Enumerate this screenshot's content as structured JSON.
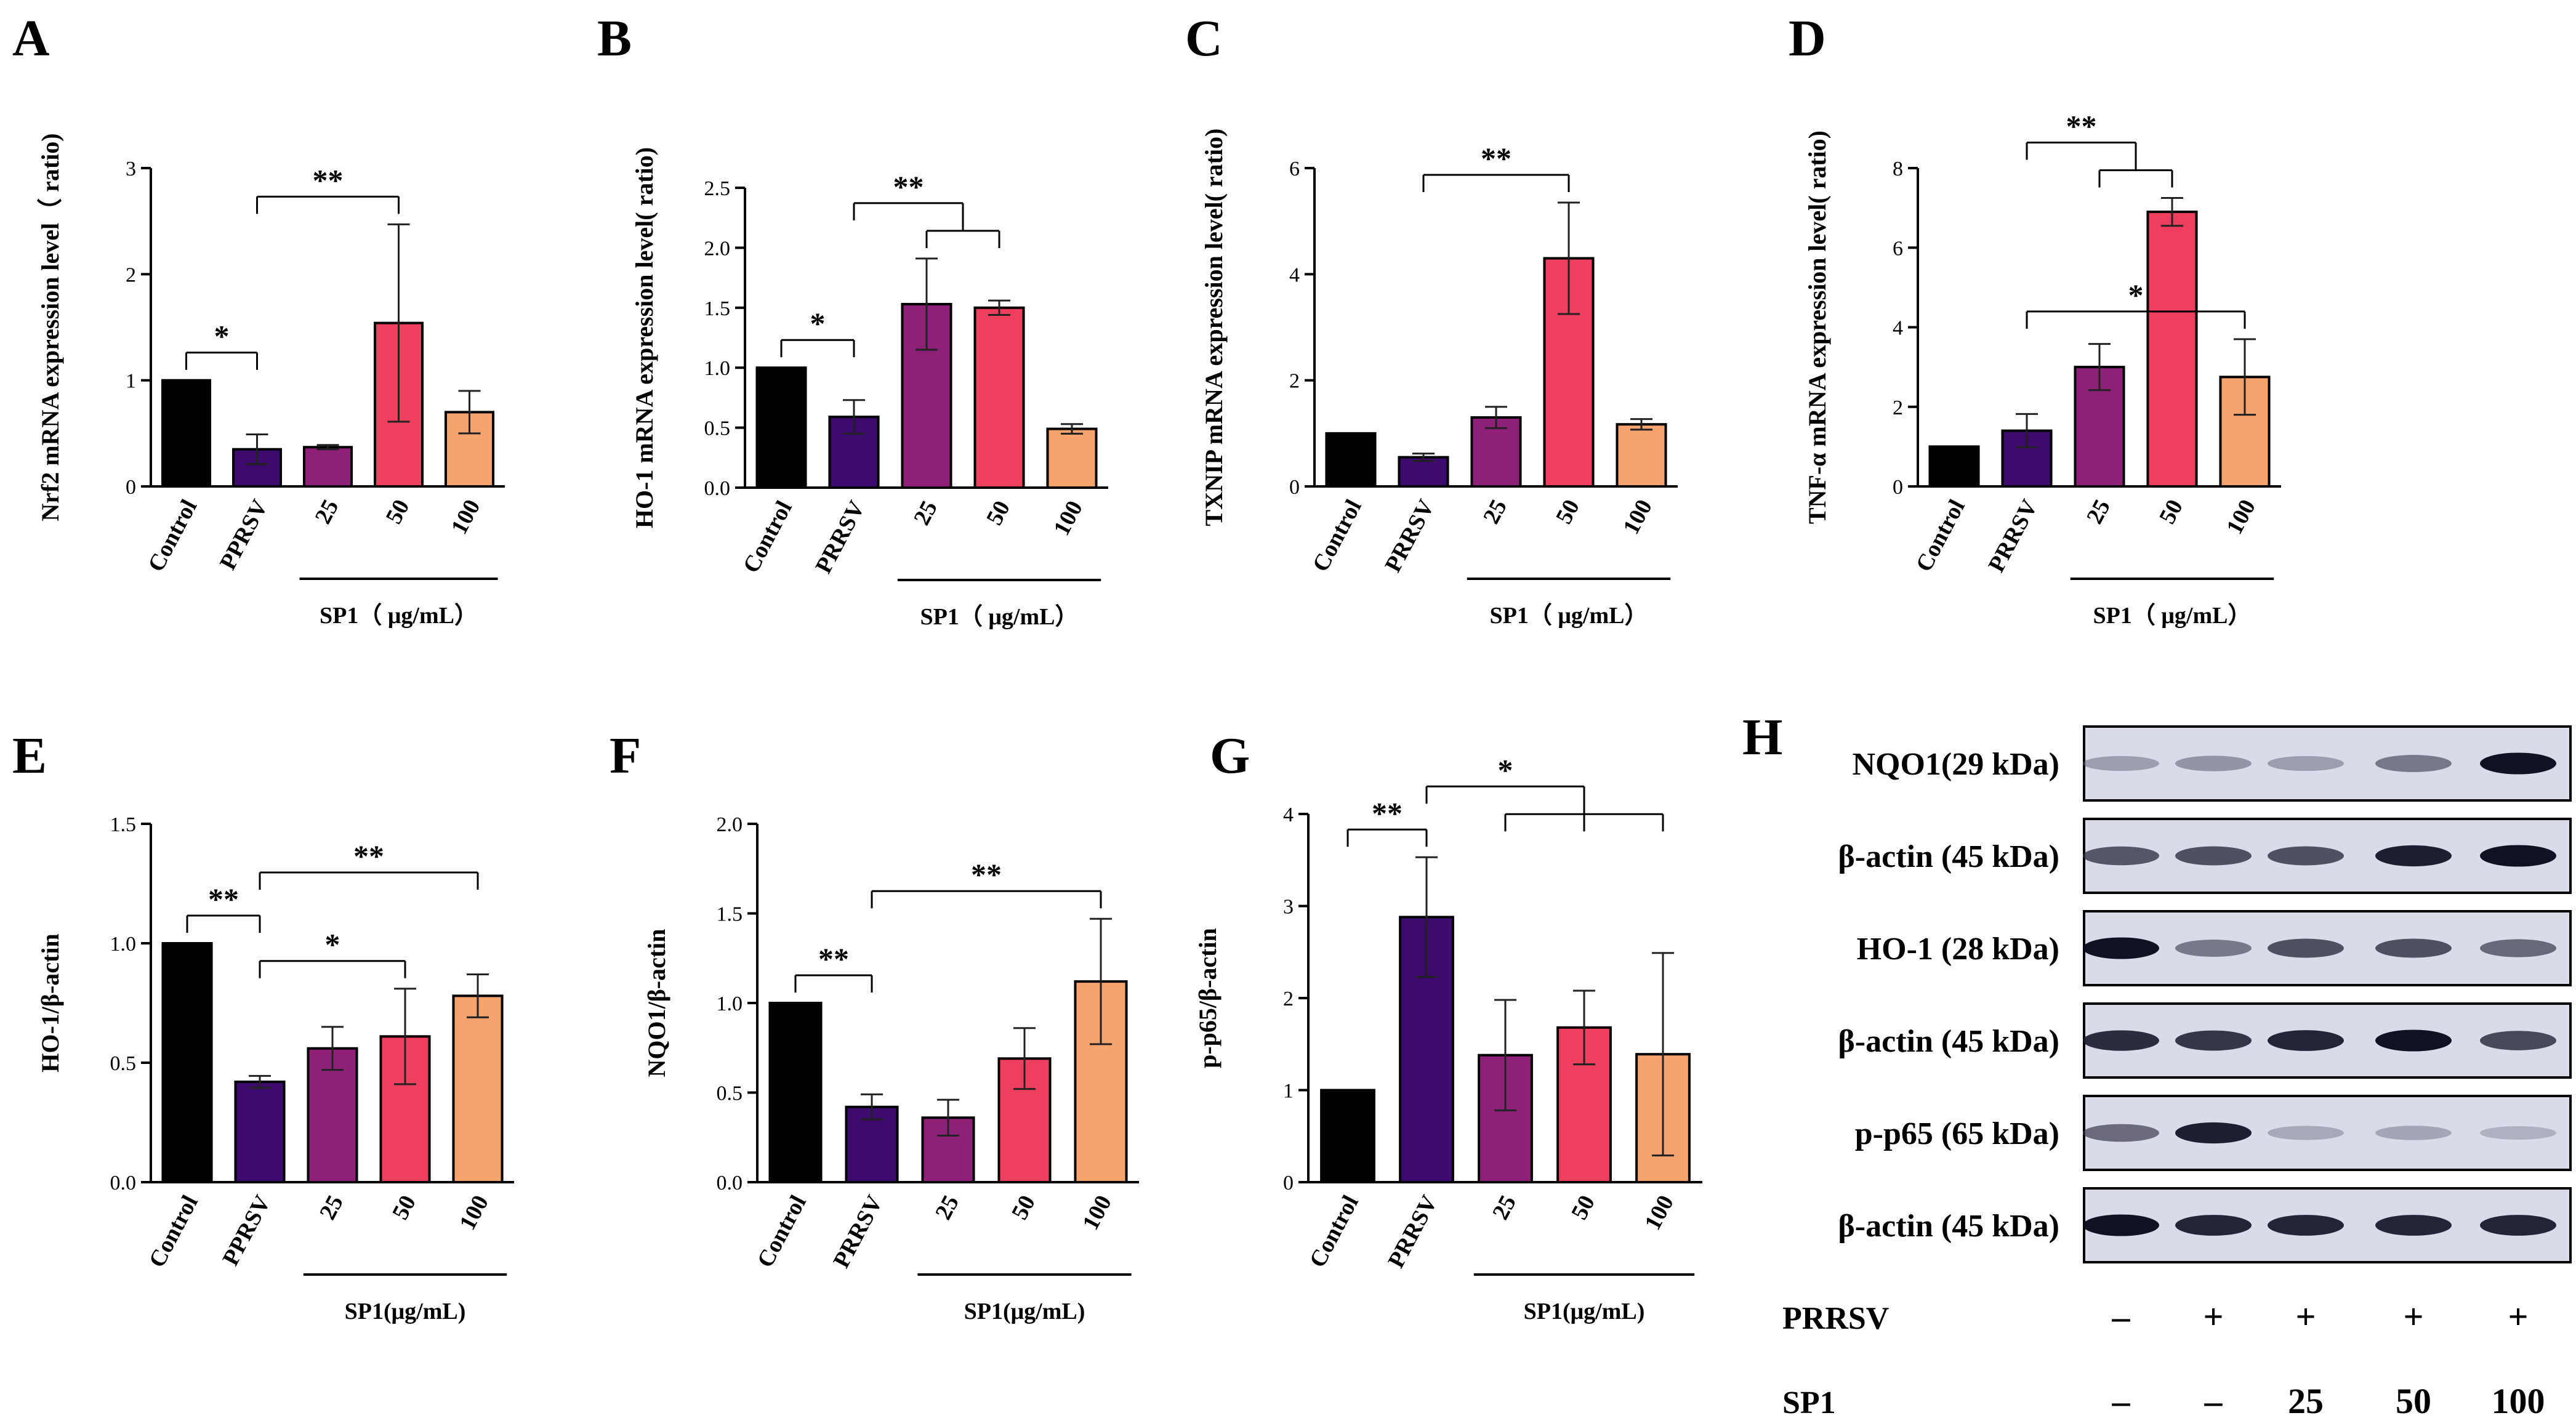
{
  "colors": {
    "Control": "#000000",
    "PRRSV": "#3d0a6e",
    "25": "#8e2077",
    "50": "#ef3f5e",
    "100": "#f7a36e"
  },
  "chart_data": [
    {
      "type": "bar",
      "panel": "A",
      "ylabel": "Nrf2 mRNA expression level（ ratio)",
      "categories": [
        "Control",
        "PPRSV",
        "25",
        "50",
        "100"
      ],
      "values": [
        1.0,
        0.35,
        0.37,
        1.54,
        0.7
      ],
      "errors": [
        0,
        0.14,
        0.02,
        0.93,
        0.2
      ],
      "ylim": [
        0,
        3
      ],
      "yticks": [
        "0",
        "1",
        "2",
        "3"
      ],
      "group_label": "SP1（  μg/mL）",
      "significance": [
        {
          "label": "*",
          "from": 0,
          "to": 1
        },
        {
          "label": "**",
          "from": 1,
          "to": 3
        }
      ]
    },
    {
      "type": "bar",
      "panel": "B",
      "ylabel": "HO-1 mRNA expression level( ratio)",
      "categories": [
        "Control",
        "PRRSV",
        "25",
        "50",
        "100"
      ],
      "values": [
        1.0,
        0.59,
        1.53,
        1.5,
        0.49
      ],
      "errors": [
        0,
        0.14,
        0.38,
        0.06,
        0.04
      ],
      "ylim": [
        0,
        2.5
      ],
      "yticks": [
        "0.0",
        "0.5",
        "1.0",
        "1.5",
        "2.0",
        "2.5"
      ],
      "group_label": "SP1（  μg/mL）",
      "significance": [
        {
          "label": "*",
          "from": 0,
          "to": 1
        },
        {
          "label": "**",
          "from": 1,
          "to": [
            2,
            3
          ]
        }
      ]
    },
    {
      "type": "bar",
      "panel": "C",
      "ylabel": "TXNIP mRNA expression level( ratio)",
      "categories": [
        "Control",
        "PRRSV",
        "25",
        "50",
        "100"
      ],
      "values": [
        1.0,
        0.55,
        1.3,
        4.3,
        1.17
      ],
      "errors": [
        0,
        0.07,
        0.2,
        1.05,
        0.1
      ],
      "ylim": [
        0,
        6
      ],
      "yticks": [
        "0",
        "2",
        "4",
        "6"
      ],
      "group_label": "SP1（  μg/mL）",
      "significance": [
        {
          "label": "**",
          "from": 1,
          "to": 3
        }
      ]
    },
    {
      "type": "bar",
      "panel": "D",
      "ylabel": "TNF-α mRNA expression level( ratio)",
      "categories": [
        "Control",
        "PRRSV",
        "25",
        "50",
        "100"
      ],
      "values": [
        1.0,
        1.4,
        3.0,
        6.9,
        2.75
      ],
      "errors": [
        0,
        0.42,
        0.58,
        0.35,
        0.95
      ],
      "ylim": [
        0,
        8
      ],
      "yticks": [
        "0",
        "2",
        "4",
        "6",
        "8"
      ],
      "group_label": "SP1（  μg/mL）",
      "significance": [
        {
          "label": "**",
          "from": 1,
          "to": [
            2,
            3
          ]
        },
        {
          "label": "*",
          "from": 1,
          "to": 4
        }
      ]
    },
    {
      "type": "bar",
      "panel": "E",
      "ylabel": "HO-1/β-actin",
      "categories": [
        "Control",
        "PPRSV",
        "25",
        "50",
        "100"
      ],
      "values": [
        1.0,
        0.42,
        0.56,
        0.61,
        0.78
      ],
      "errors": [
        0,
        0.025,
        0.09,
        0.2,
        0.09
      ],
      "ylim": [
        0,
        1.5
      ],
      "yticks": [
        "0.0",
        "0.5",
        "1.0",
        "1.5"
      ],
      "group_label": "SP1(μg/mL)",
      "significance": [
        {
          "label": "**",
          "from": 0,
          "to": 1
        },
        {
          "label": "**",
          "from": 1,
          "to": 4
        },
        {
          "label": "*",
          "from": 1,
          "to": 3
        }
      ]
    },
    {
      "type": "bar",
      "panel": "F",
      "ylabel": "NQO1/β-actin",
      "categories": [
        "Control",
        "PRRSV",
        "25",
        "50",
        "100"
      ],
      "values": [
        1.0,
        0.42,
        0.36,
        0.69,
        1.12
      ],
      "errors": [
        0,
        0.07,
        0.1,
        0.17,
        0.35
      ],
      "ylim": [
        0,
        2.0
      ],
      "yticks": [
        "0.0",
        "0.5",
        "1.0",
        "1.5",
        "2.0"
      ],
      "group_label": "SP1(μg/mL)",
      "significance": [
        {
          "label": "**",
          "from": 0,
          "to": 1
        },
        {
          "label": "**",
          "from": 1,
          "to": 4
        }
      ]
    },
    {
      "type": "bar",
      "panel": "G",
      "ylabel": "p-p65/β-actin",
      "categories": [
        "Control",
        "PRRSV",
        "25",
        "50",
        "100"
      ],
      "values": [
        1.0,
        2.88,
        1.38,
        1.68,
        1.39
      ],
      "errors": [
        0,
        0.65,
        0.6,
        0.4,
        1.1
      ],
      "ylim": [
        0,
        4
      ],
      "yticks": [
        "0",
        "1",
        "2",
        "3",
        "4"
      ],
      "group_label": "SP1(μg/mL)",
      "significance": [
        {
          "label": "**",
          "from": 0,
          "to": 1
        },
        {
          "label": "*",
          "from": 1,
          "to": [
            2,
            3,
            4
          ]
        }
      ]
    }
  ],
  "blot": {
    "panel": "H",
    "bands": [
      {
        "label": "NQO1(29 kDa)",
        "intensity": [
          0.35,
          0.4,
          0.35,
          0.55,
          0.95
        ]
      },
      {
        "label": "β-actin (45 kDa)",
        "intensity": [
          0.7,
          0.72,
          0.72,
          0.9,
          0.95
        ]
      },
      {
        "label": "HO-1 (28 kDa)",
        "intensity": [
          0.95,
          0.55,
          0.72,
          0.72,
          0.62
        ]
      },
      {
        "label": "β-actin (45 kDa)",
        "intensity": [
          0.85,
          0.82,
          0.88,
          0.95,
          0.75
        ]
      },
      {
        "label": "p-p65 (65 kDa)",
        "intensity": [
          0.6,
          0.9,
          0.28,
          0.3,
          0.22
        ]
      },
      {
        "label": "β-actin (45 kDa)",
        "intensity": [
          0.95,
          0.88,
          0.88,
          0.88,
          0.88
        ]
      }
    ],
    "rows": [
      {
        "label": "PRRSV",
        "values": [
          "–",
          "+",
          "+",
          "+",
          "+"
        ]
      },
      {
        "label": "SP1",
        "values": [
          "–",
          "–",
          "25",
          "50",
          "100"
        ]
      }
    ]
  }
}
